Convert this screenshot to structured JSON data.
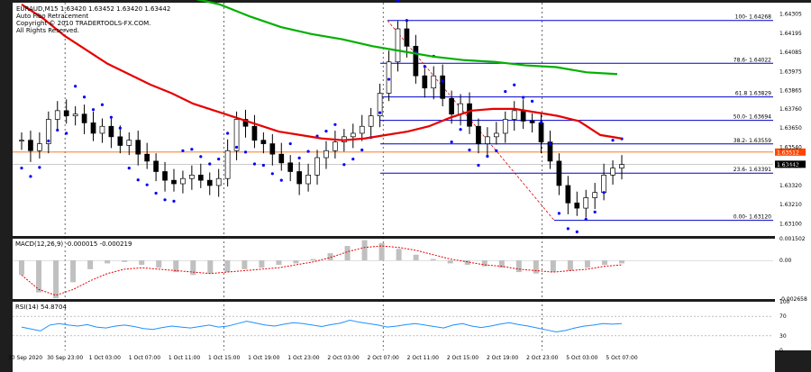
{
  "header": {
    "title": "EURAUD,M15  1.63420 1.63452 1.63420 1.63442",
    "indicator": "Auto Fibo Retracement",
    "copyright": "Copyright © 2010 TRADERTOOLS-FX.COM.",
    "rights": "All Rights Reserved."
  },
  "colors": {
    "background": "#ffffff",
    "frame": "#1e1e1e",
    "candle": "#000000",
    "sar": "#0000ff",
    "ma_red": "#e60000",
    "ma_green": "#00b000",
    "fibo": "#0000cc",
    "price_line": "#ff6600",
    "macd_hist": "#c0c0c0",
    "macd_signal": "#e60000",
    "rsi": "#1e90ff"
  },
  "chart_data": [
    {
      "type": "line",
      "panel": "main",
      "symbol": "EURAUD",
      "timeframe": "M15",
      "ohlc": {
        "open": 1.6342,
        "high": 1.63452,
        "low": 1.6342,
        "close": 1.63442
      },
      "ylim": [
        1.6303,
        1.6437
      ],
      "price_ticks": [
        "1.64305",
        "1.64195",
        "1.64085",
        "1.63975",
        "1.63865",
        "1.63760",
        "1.63650",
        "1.63540",
        "1.63430",
        "1.63320",
        "1.63210",
        "1.63100"
      ],
      "time_labels": [
        "30 Sep 2020",
        "30 Sep 23:00",
        "1 Oct 03:00",
        "1 Oct 07:00",
        "1 Oct 11:00",
        "1 Oct 15:00",
        "1 Oct 19:00",
        "1 Oct 23:00",
        "2 Oct 03:00",
        "2 Oct 07:00",
        "2 Oct 11:00",
        "2 Oct 15:00",
        "2 Oct 19:00",
        "2 Oct 23:00",
        "5 Oct 03:00",
        "5 Oct 07:00"
      ],
      "current_price": "1.63442",
      "marked_price": "1.63512",
      "fibo_levels": [
        {
          "label": "100- 1.64268",
          "value": 1.64268
        },
        {
          "label": "78.6- 1.64022",
          "value": 1.64022
        },
        {
          "label": "61.8 1.63829",
          "value": 1.63829
        },
        {
          "label": "50.0- 1.63694",
          "value": 1.63694
        },
        {
          "label": "38.2- 1.63559",
          "value": 1.63559
        },
        {
          "label": "23.6- 1.63391",
          "value": 1.63391
        },
        {
          "label": "0.00- 1.63120",
          "value": 1.6312
        }
      ],
      "series": [
        {
          "name": "Close",
          "values": [
            1.6358,
            1.6352,
            1.6356,
            1.637,
            1.6375,
            1.6372,
            1.6373,
            1.6368,
            1.6362,
            1.6366,
            1.636,
            1.6355,
            1.6358,
            1.635,
            1.6346,
            1.634,
            1.6335,
            1.6333,
            1.6336,
            1.6338,
            1.6335,
            1.6332,
            1.6336,
            1.6352,
            1.637,
            1.6366,
            1.6358,
            1.6356,
            1.635,
            1.6345,
            1.634,
            1.6333,
            1.6338,
            1.6348,
            1.6352,
            1.6357,
            1.636,
            1.6362,
            1.6366,
            1.6372,
            1.6385,
            1.6403,
            1.6422,
            1.6412,
            1.6395,
            1.6388,
            1.6395,
            1.6382,
            1.6373,
            1.6379,
            1.6366,
            1.6356,
            1.636,
            1.6362,
            1.637,
            1.6375,
            1.6369,
            1.6368,
            1.6357,
            1.6346,
            1.6332,
            1.6322,
            1.6319,
            1.6325,
            1.6328,
            1.6338,
            1.6342,
            1.6344
          ]
        },
        {
          "name": "MA red",
          "values": [
            1.6436,
            1.6428,
            1.6418,
            1.641,
            1.6402,
            1.6396,
            1.639,
            1.6385,
            1.6379,
            1.6375,
            1.6371,
            1.6367,
            1.6363,
            1.6361,
            1.6359,
            1.6358,
            1.6359,
            1.6361,
            1.6363,
            1.6366,
            1.6371,
            1.6375,
            1.6376,
            1.6376,
            1.6374,
            1.6372,
            1.6369,
            1.6361,
            1.6359
          ]
        },
        {
          "name": "MA green",
          "values": [
            1.644,
            1.6436,
            1.6429,
            1.6423,
            1.6419,
            1.6416,
            1.6412,
            1.6409,
            1.6406,
            1.6404,
            1.6403,
            1.6401,
            1.64,
            1.6397,
            1.6396
          ]
        }
      ]
    },
    {
      "type": "area",
      "panel": "macd",
      "label": "MACD(12,26,9) -0.000015 -0.000219",
      "ylim": [
        -0.002658,
        0.001502
      ],
      "ticks": [
        "0.001502",
        "0.00",
        "-0.002658"
      ],
      "series": [
        {
          "name": "Main",
          "values": [
            -0.001,
            -0.0022,
            -0.0026,
            -0.0015,
            -0.0006,
            -0.0002,
            -0.0001,
            -0.0003,
            -0.0005,
            -0.0008,
            -0.001,
            -0.0009,
            -0.0008,
            -0.0006,
            -0.0005,
            -0.0003,
            -0.0002,
            0.0001,
            0.0005,
            0.001,
            0.0014,
            0.0012,
            0.0008,
            0.0004,
            0.0001,
            -0.0002,
            -0.0003,
            -0.0004,
            -0.0005,
            -0.0008,
            -0.0009,
            -0.0008,
            -0.0007,
            -0.0005,
            -0.0003,
            -0.0002
          ]
        },
        {
          "name": "Signal",
          "values": [
            -0.001,
            -0.002,
            -0.0024,
            -0.002,
            -0.0014,
            -0.0009,
            -0.0006,
            -0.0005,
            -0.0006,
            -0.0007,
            -0.0008,
            -0.0009,
            -0.0008,
            -0.0007,
            -0.0006,
            -0.0005,
            -0.0003,
            -0.0001,
            0.0002,
            0.0006,
            0.0009,
            0.001,
            0.0009,
            0.0007,
            0.0004,
            0.0001,
            -0.0001,
            -0.0003,
            -0.0004,
            -0.0006,
            -0.0007,
            -0.0008,
            -0.0007,
            -0.0006,
            -0.0004,
            -0.0003
          ]
        }
      ]
    },
    {
      "type": "line",
      "panel": "rsi",
      "label": "RSI(14) 54.8704",
      "ylim": [
        0,
        100
      ],
      "ticks": [
        "100",
        "70",
        "30",
        "0"
      ],
      "series": [
        {
          "name": "RSI",
          "values": [
            48,
            44,
            40,
            52,
            55,
            52,
            50,
            53,
            48,
            46,
            50,
            52,
            49,
            45,
            43,
            47,
            50,
            48,
            46,
            49,
            52,
            48,
            50,
            55,
            60,
            56,
            52,
            50,
            54,
            57,
            55,
            52,
            49,
            53,
            56,
            62,
            58,
            55,
            52,
            48,
            50,
            53,
            55,
            52,
            49,
            46,
            52,
            55,
            50,
            47,
            50,
            54,
            57,
            53,
            50,
            46,
            42,
            38,
            41,
            46,
            50,
            52,
            55,
            54,
            55
          ]
        }
      ]
    }
  ]
}
